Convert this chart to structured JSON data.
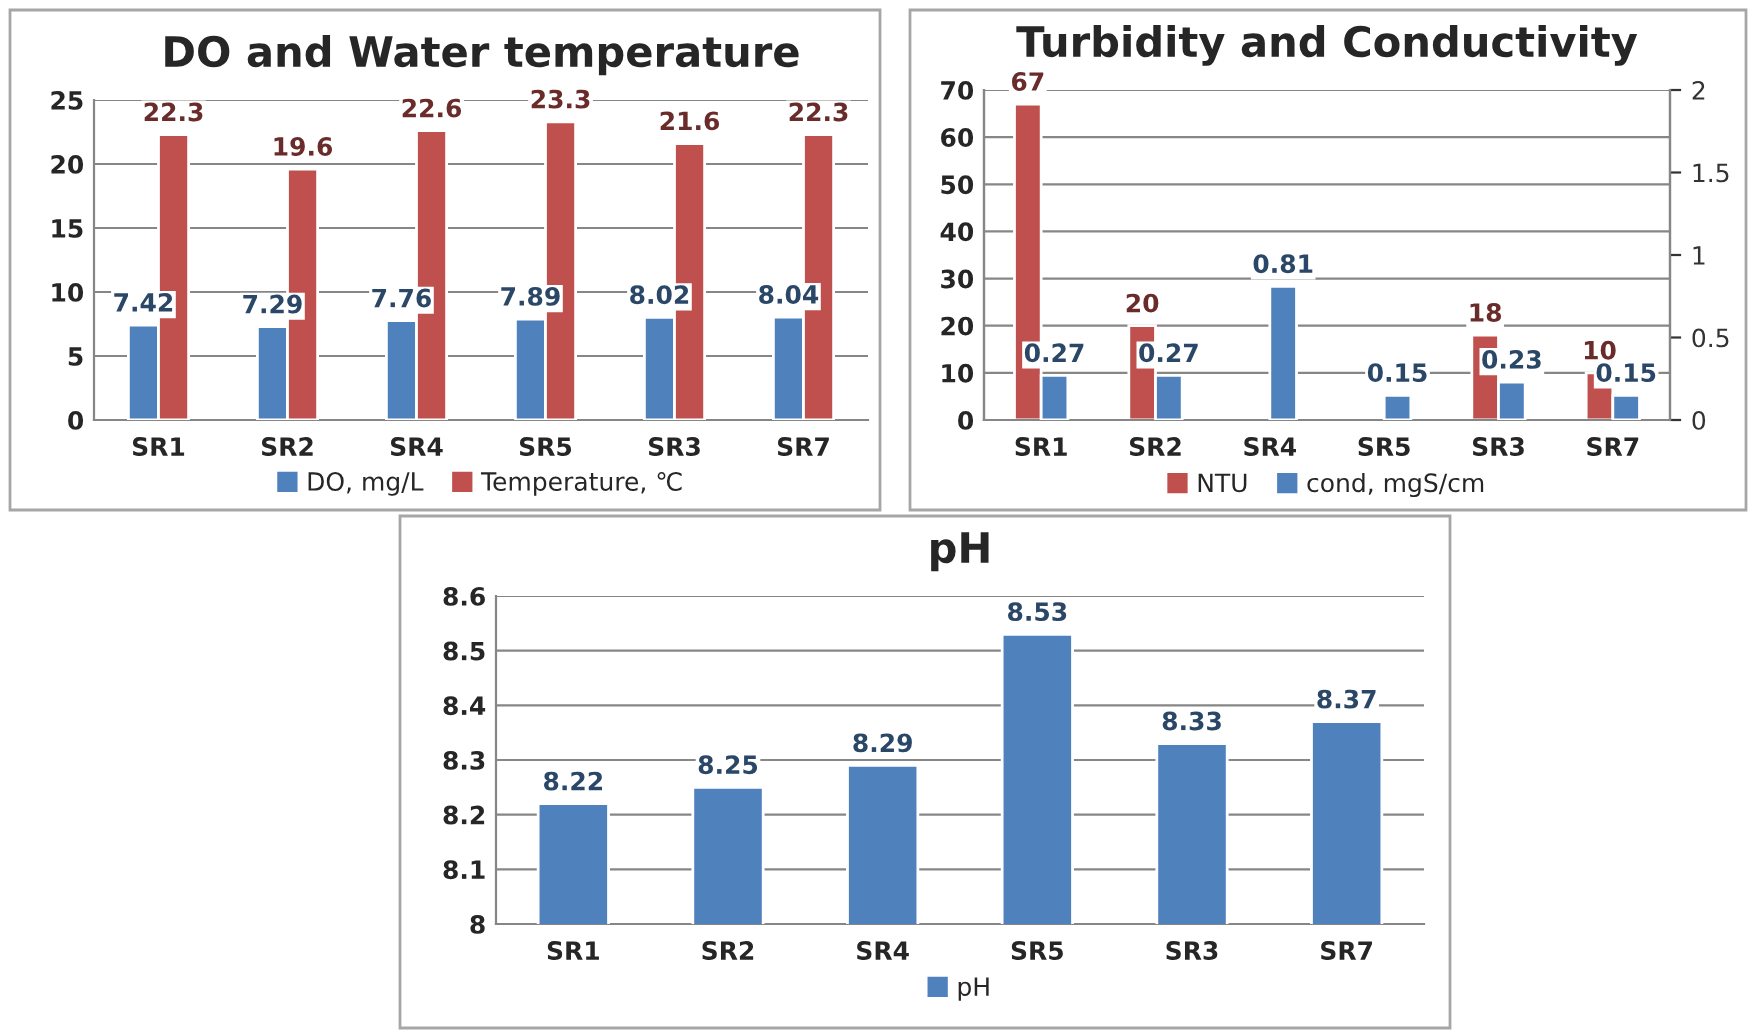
{
  "chart_data": [
    {
      "type": "bar",
      "title": "DO and Water temperature",
      "categories": [
        "SR1",
        "SR2",
        "SR4",
        "SR5",
        "SR3",
        "SR7"
      ],
      "series": [
        {
          "name": "DO, mg/L",
          "color": "#4f81bd",
          "values": [
            7.42,
            7.29,
            7.76,
            7.89,
            8.02,
            8.04
          ]
        },
        {
          "name": "Temperature, ℃",
          "color": "#c0504d",
          "values": [
            22.3,
            19.6,
            22.6,
            23.3,
            21.6,
            22.3
          ]
        }
      ],
      "ylim": [
        0,
        25
      ],
      "yticks": [
        0,
        5,
        10,
        15,
        20,
        25
      ],
      "grid": "y",
      "legend": "bottom",
      "data_labels": true
    },
    {
      "type": "bar",
      "title": "Turbidity and Conductivity",
      "categories": [
        "SR1",
        "SR2",
        "SR4",
        "SR5",
        "SR3",
        "SR7"
      ],
      "series": [
        {
          "name": "NTU",
          "color": "#c0504d",
          "values": [
            67,
            20,
            null,
            null,
            18,
            10
          ]
        },
        {
          "name": "cond, mgS/cm",
          "color": "#4f81bd",
          "axis": "y2",
          "values": [
            0.27,
            0.27,
            0.81,
            0.15,
            0.23,
            0.15
          ]
        }
      ],
      "ylim": [
        0,
        70
      ],
      "yticks": [
        0,
        10,
        20,
        30,
        40,
        50,
        60,
        70
      ],
      "y2lim": [
        0,
        2
      ],
      "y2ticks": [
        0,
        0.5,
        1,
        1.5,
        2
      ],
      "grid": "y",
      "legend": "bottom",
      "data_labels": true
    },
    {
      "type": "bar",
      "title": "pH",
      "categories": [
        "SR1",
        "SR2",
        "SR4",
        "SR5",
        "SR3",
        "SR7"
      ],
      "series": [
        {
          "name": "pH",
          "color": "#4f81bd",
          "values": [
            8.22,
            8.25,
            8.29,
            8.53,
            8.33,
            8.37
          ]
        }
      ],
      "ylim": [
        8,
        8.6
      ],
      "yticks": [
        8,
        8.1,
        8.2,
        8.3,
        8.4,
        8.5,
        8.6
      ],
      "grid": "y",
      "legend": "bottom",
      "data_labels": true
    }
  ]
}
